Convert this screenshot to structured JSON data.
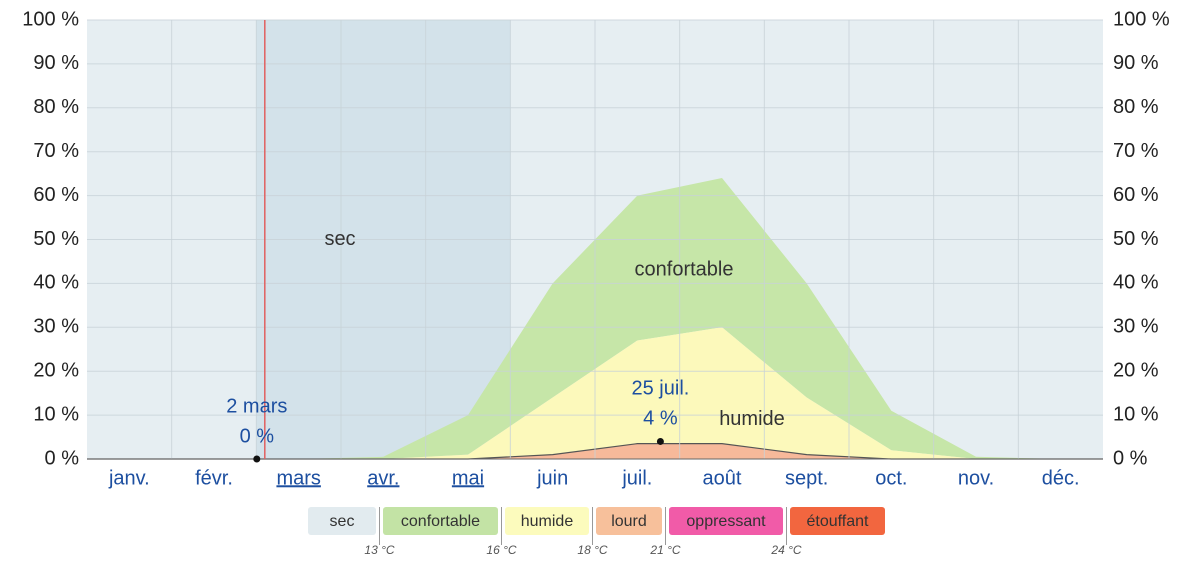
{
  "chart_data": {
    "type": "stacked_area",
    "categories": [
      "janv.",
      "févr.",
      "mars",
      "avr.",
      "mai",
      "juin",
      "juil.",
      "août",
      "sept.",
      "oct.",
      "nov.",
      "déc."
    ],
    "selected_categories": [
      2,
      3,
      4
    ],
    "background_label": "sec",
    "series": [
      {
        "name": "lourd",
        "color": "#f7b99a",
        "values": [
          0,
          0,
          0,
          0,
          0,
          1,
          3.5,
          3.5,
          1,
          0,
          0,
          0
        ]
      },
      {
        "name": "humide",
        "color": "#fcf9bb",
        "values": [
          0,
          0,
          0,
          0,
          1,
          13,
          23.5,
          26.5,
          13,
          2,
          0,
          0
        ]
      },
      {
        "name": "confortable",
        "color": "#c6e6a8",
        "values": [
          0,
          0,
          0,
          0.5,
          9,
          26,
          33,
          34,
          26,
          9,
          0.5,
          0
        ]
      }
    ],
    "area_labels": [
      {
        "text": "humide",
        "series": 1
      },
      {
        "text": "confortable",
        "series": 2
      }
    ],
    "annotations": [
      {
        "date": "2 mars",
        "day": 61,
        "value": 0,
        "value_label": "0 %"
      },
      {
        "date": "25 juil.",
        "day": 206,
        "value": 4,
        "value_label": "4 %"
      }
    ],
    "ylim": [
      0,
      100
    ],
    "yticks": [
      {
        "value": 0,
        "label": "0 %"
      },
      {
        "value": 10,
        "label": "10 %"
      },
      {
        "value": 20,
        "label": "20 %"
      },
      {
        "value": 30,
        "label": "30 %"
      },
      {
        "value": 40,
        "label": "40 %"
      },
      {
        "value": 50,
        "label": "50 %"
      },
      {
        "value": 60,
        "label": "60 %"
      },
      {
        "value": 70,
        "label": "70 %"
      },
      {
        "value": 80,
        "label": "80 %"
      },
      {
        "value": 90,
        "label": "90 %"
      },
      {
        "value": 100,
        "label": "100 %"
      }
    ],
    "y2lim": [
      0,
      100
    ],
    "y2ticks": [
      {
        "value": 0,
        "label": "0 %"
      },
      {
        "value": 10,
        "label": "10 %"
      },
      {
        "value": 20,
        "label": "20 %"
      },
      {
        "value": 30,
        "label": "30 %"
      },
      {
        "value": 40,
        "label": "40 %"
      },
      {
        "value": 50,
        "label": "50 %"
      },
      {
        "value": 60,
        "label": "60 %"
      },
      {
        "value": 70,
        "label": "70 %"
      },
      {
        "value": 80,
        "label": "80 %"
      },
      {
        "value": 90,
        "label": "90 %"
      },
      {
        "value": 100,
        "label": "100 %"
      }
    ],
    "grid": true,
    "legend": {
      "items": [
        {
          "name": "sec",
          "color": "#e2ebef"
        },
        {
          "name": "confortable",
          "color": "#c3e3a5"
        },
        {
          "name": "humide",
          "color": "#fcfbbd"
        },
        {
          "name": "lourd",
          "color": "#f7c09b"
        },
        {
          "name": "oppressant",
          "color": "#f15ba8"
        },
        {
          "name": "étouffant",
          "color": "#f2663f"
        }
      ],
      "thresholds": [
        "13 °C",
        "16 °C",
        "18 °C",
        "21 °C",
        "24 °C"
      ]
    }
  }
}
